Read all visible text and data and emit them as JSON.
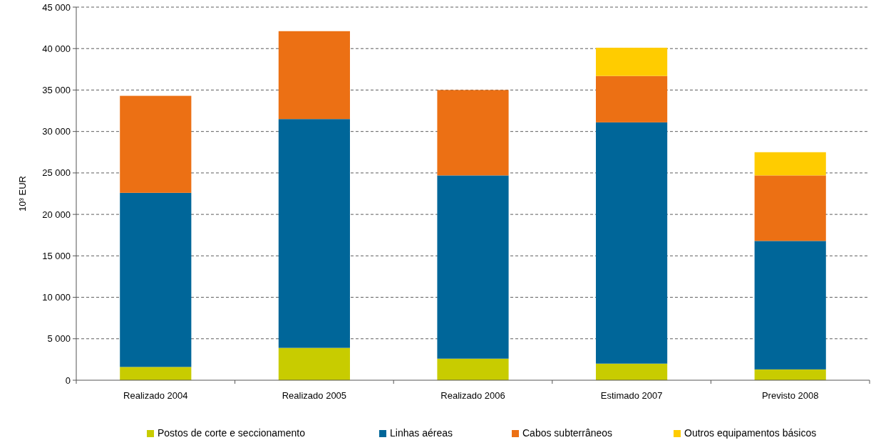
{
  "chart_data": {
    "type": "bar",
    "stacked": true,
    "ylabel": "10³ EUR",
    "categories": [
      "Realizado 2004",
      "Realizado 2005",
      "Realizado 2006",
      "Estimado 2007",
      "Previsto 2008"
    ],
    "series": [
      {
        "name": "Postos de corte e seccionamento",
        "color": "#c8cc00",
        "values": [
          1600,
          3900,
          2600,
          2000,
          1300
        ]
      },
      {
        "name": "Linhas aéreas",
        "color": "#006699",
        "values": [
          21000,
          27600,
          22100,
          29100,
          15500
        ]
      },
      {
        "name": "Cabos subterrâneos",
        "color": "#ec7014",
        "values": [
          11700,
          10600,
          10300,
          5600,
          7900
        ]
      },
      {
        "name": "Outros equipamentos básicos",
        "color": "#ffcc00",
        "values": [
          0,
          0,
          0,
          3400,
          2800
        ]
      }
    ],
    "ylim": [
      0,
      45000
    ],
    "yticks": [
      {
        "value": 0,
        "label": "0"
      },
      {
        "value": 5000,
        "label": "5 000"
      },
      {
        "value": 10000,
        "label": "10 000"
      },
      {
        "value": 15000,
        "label": "15 000"
      },
      {
        "value": 20000,
        "label": "20 000"
      },
      {
        "value": 25000,
        "label": "25 000"
      },
      {
        "value": 30000,
        "label": "30 000"
      },
      {
        "value": 35000,
        "label": "35 000"
      },
      {
        "value": 40000,
        "label": "40 000"
      },
      {
        "value": 45000,
        "label": "45 000"
      }
    ],
    "grid": "y",
    "legend": "bottom"
  }
}
